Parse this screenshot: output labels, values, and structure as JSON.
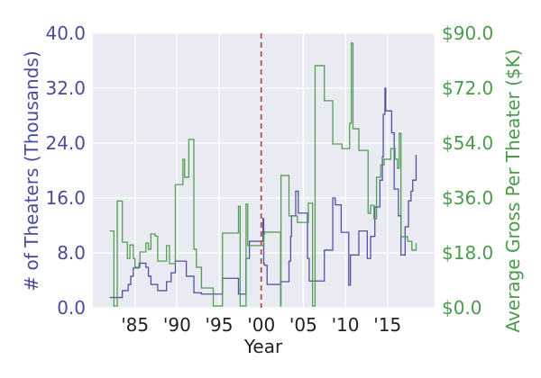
{
  "chart_data": {
    "type": "line",
    "title": "",
    "xlabel": "Year",
    "ylabel_left": "# of Theaters (Thousands)",
    "ylabel_right": "Average Gross Per Theater ($K)",
    "xlim": [
      1980,
      2020.6
    ],
    "ylim_left": [
      0,
      40
    ],
    "ylim_right": [
      0,
      90
    ],
    "x_ticks": [
      1985,
      1990,
      1995,
      2000,
      2005,
      2010,
      2015
    ],
    "x_tick_labels": [
      "'85",
      "'90",
      "'95",
      "'00",
      "'05",
      "'10",
      "'15"
    ],
    "y_left_ticks": [
      0,
      8,
      16,
      24,
      32,
      40
    ],
    "y_left_tick_labels": [
      "0.0",
      "8.0",
      "16.0",
      "24.0",
      "32.0",
      "40.0"
    ],
    "y_right_ticks": [
      0,
      18,
      36,
      54,
      72,
      90
    ],
    "y_right_tick_labels": [
      "$0.0",
      "$18.0",
      "$36.0",
      "$54.0",
      "$72.0",
      "$90.0"
    ],
    "grid": true,
    "step": true,
    "vline": {
      "x": 2000,
      "style": "dashed",
      "color": "#b05050"
    },
    "colors": {
      "left": "#4b4b9c",
      "right": "#4c9a4c",
      "background": "#eaeaf2"
    },
    "series": [
      {
        "axis": "left",
        "x": [
          1982.0,
          1983.5,
          1984.2,
          1984.5,
          1984.8,
          1985.5,
          1986.3,
          1986.6,
          1986.9,
          1987.7,
          1988.75,
          1989.3,
          1989.8,
          1991.1,
          1992.0,
          1992.9,
          1994.3,
          1995.4,
          1997.3,
          1998.2,
          1998.6,
          2000.2,
          2000.3,
          2000.4,
          2000.7,
          2002.3,
          2003.3,
          2003.5,
          2003.6,
          2004.1,
          2004.4,
          2005.4,
          2005.5,
          2005.7,
          2007.5,
          2008.5,
          2008.8,
          2009.5,
          2010.4,
          2010.6,
          2011.6,
          2012.6,
          2013.0,
          2013.5,
          2014.1,
          2014.4,
          2014.5,
          2014.7,
          2014.8,
          2015.5,
          2015.8,
          2016.3,
          2016.6,
          2017.1,
          2017.5,
          2017.8,
          2018.0,
          2018.4
        ],
        "y": [
          1.5,
          2.5,
          3.4,
          4.6,
          5.8,
          6.5,
          5.9,
          4.6,
          3.4,
          2.5,
          3.8,
          5.1,
          6.8,
          4.6,
          2.2,
          2.0,
          2.0,
          4.3,
          2.0,
          7.2,
          9.7,
          13.0,
          6.4,
          6.2,
          3.4,
          3.8,
          6.8,
          10.4,
          13.4,
          17.0,
          13.8,
          13.8,
          7.2,
          3.9,
          8.4,
          16.0,
          15.0,
          11.0,
          3.3,
          7.7,
          11.2,
          7.2,
          10.4,
          14.7,
          18.6,
          22.0,
          28.2,
          32.0,
          28.7,
          25.5,
          17.3,
          13.4,
          7.7,
          11.8,
          15.6,
          17.0,
          18.6,
          22.3
        ]
      },
      {
        "axis": "right",
        "x": [
          1982.0,
          1982.5,
          1982.9,
          1983.5,
          1984.1,
          1984.4,
          1984.8,
          1985.0,
          1985.6,
          1986.3,
          1986.6,
          1986.9,
          1987.4,
          1987.7,
          1988.75,
          1989.1,
          1989.8,
          1990.7,
          1990.9,
          1991.4,
          1992.0,
          1992.3,
          1992.9,
          1994.3,
          1995.4,
          1997.3,
          1997.5,
          1998.2,
          1998.4,
          2000.3,
          2000.4,
          2002.3,
          2002.35,
          2003.3,
          2004.3,
          2005.6,
          2006.1,
          2006.4,
          2007.5,
          2008.5,
          2009.6,
          2010.5,
          2010.7,
          2010.9,
          2011.6,
          2012.7,
          2013.0,
          2013.4,
          2013.7,
          2014.2,
          2014.6,
          2015.4,
          2015.9,
          2016.2,
          2016.4,
          2016.6,
          2017.4,
          2017.9,
          2018.4
        ],
        "y": [
          25.2,
          0.6,
          35.0,
          21.5,
          16.2,
          20.6,
          16.2,
          13.3,
          18.3,
          21.2,
          19.2,
          24.2,
          23.5,
          15.3,
          20.4,
          14.5,
          40.4,
          48.7,
          42.8,
          55.2,
          19.2,
          13.3,
          6.5,
          0.6,
          24.5,
          33.3,
          0.6,
          34.0,
          20.4,
          24.2,
          24.8,
          0.6,
          43.4,
          30.1,
          28.0,
          34.3,
          0.6,
          79.4,
          67.9,
          53.7,
          52.2,
          60.5,
          86.8,
          58.7,
          51.6,
          31.0,
          33.6,
          29.2,
          42.8,
          46.9,
          48.7,
          52.2,
          48.7,
          45.7,
          57.2,
          23.3,
          21.8,
          18.9,
          21.2
        ]
      }
    ]
  }
}
